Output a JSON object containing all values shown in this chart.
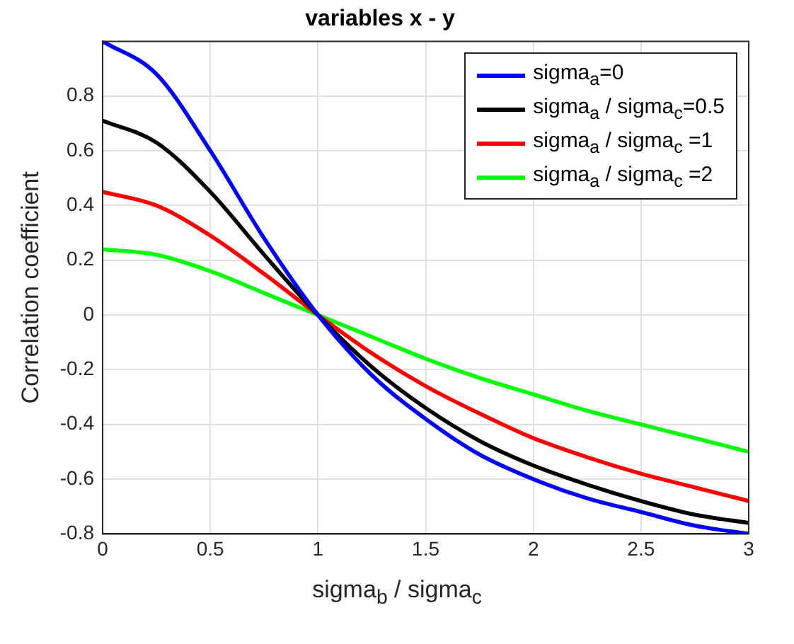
{
  "chart_data": {
    "type": "line",
    "title": "variables x - y",
    "xlabel": "sigma$_{b}$ / sigma$_{c}$",
    "ylabel": "Correlation coefficient",
    "x": [
      0,
      0.25,
      0.5,
      0.75,
      1,
      1.25,
      1.5,
      1.75,
      2,
      2.25,
      2.5,
      2.75,
      3
    ],
    "series": [
      {
        "name": "sigma$_{a}$=0",
        "color": "#0000ff",
        "values": [
          1,
          0.88,
          0.6,
          0.28,
          0,
          -0.22,
          -0.38,
          -0.51,
          -0.6,
          -0.67,
          -0.72,
          -0.77,
          -0.8
        ]
      },
      {
        "name": "sigma$_{a}$ / sigma$_{c}$=0.5",
        "color": "#000000",
        "values": [
          0.71,
          0.63,
          0.45,
          0.22,
          0,
          -0.19,
          -0.34,
          -0.46,
          -0.55,
          -0.62,
          -0.68,
          -0.73,
          -0.76
        ]
      },
      {
        "name": "sigma$_{a}$ / sigma$_{c}$ =1",
        "color": "#ff0000",
        "values": [
          0.45,
          0.4,
          0.29,
          0.15,
          0,
          -0.14,
          -0.26,
          -0.36,
          -0.45,
          -0.52,
          -0.58,
          -0.63,
          -0.68
        ]
      },
      {
        "name": "sigma$_{a}$ / sigma$_{c}$ =2",
        "color": "#00ff00",
        "values": [
          0.24,
          0.22,
          0.16,
          0.08,
          0,
          -0.08,
          -0.16,
          -0.23,
          -0.29,
          -0.35,
          -0.4,
          -0.45,
          -0.5
        ]
      }
    ],
    "xlim": [
      0,
      3
    ],
    "xticks": [
      0,
      0.5,
      1,
      1.5,
      2,
      2.5,
      3
    ],
    "ylim": [
      -0.8,
      1
    ],
    "yticks": [
      -0.8,
      -0.6,
      -0.4,
      -0.2,
      0,
      0.2,
      0.4,
      0.6,
      0.8
    ],
    "grid": true,
    "legend": "top right"
  }
}
